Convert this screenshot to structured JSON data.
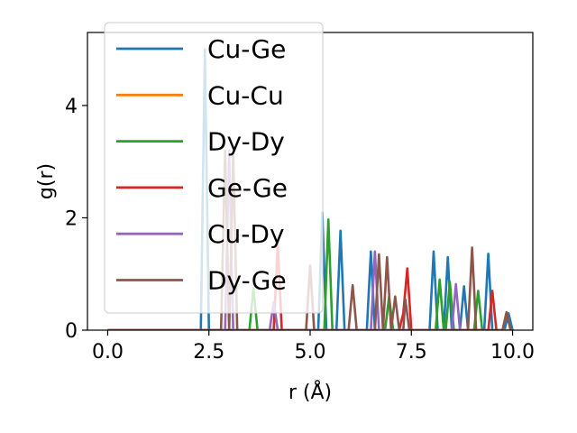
{
  "chart_data": {
    "type": "line",
    "xlabel": "r (Å)",
    "ylabel": "g(r)",
    "xlim": [
      -0.5,
      10.5
    ],
    "ylim": [
      0,
      5.3
    ],
    "xticks": [
      0.0,
      2.5,
      5.0,
      7.5,
      10.0
    ],
    "xtick_labels": [
      "0.0",
      "2.5",
      "5.0",
      "7.5",
      "10.0"
    ],
    "yticks": [
      0,
      2,
      4
    ],
    "ytick_labels": [
      "0",
      "2",
      "4"
    ],
    "grid": false,
    "legend_position": "top-left",
    "series": [
      {
        "name": "Cu-Ge",
        "color": "#1f77b4",
        "x": [
          0,
          2.3,
          2.4,
          2.5,
          5.2,
          5.3,
          5.4,
          5.65,
          5.75,
          5.85,
          6.4,
          6.5,
          6.6,
          7.95,
          8.05,
          8.15,
          8.3,
          8.4,
          8.5,
          8.7,
          8.8,
          8.9,
          9.3,
          9.4,
          9.5,
          9.8,
          9.9,
          10.0
        ],
        "y": [
          0,
          0,
          5.0,
          0,
          0,
          2.1,
          0,
          0,
          1.77,
          0,
          0,
          1.4,
          0,
          0,
          1.4,
          0,
          0,
          1.3,
          0,
          0,
          0.78,
          0,
          0,
          1.36,
          0,
          0,
          0.3,
          0
        ]
      },
      {
        "name": "Cu-Cu",
        "color": "#ff7f0e",
        "x": [
          0,
          10.0
        ],
        "y": [
          0,
          0
        ]
      },
      {
        "name": "Dy-Dy",
        "color": "#2ca02c",
        "x": [
          0,
          3.5,
          3.6,
          3.7,
          5.35,
          5.45,
          5.55,
          6.85,
          6.95,
          7.05,
          8.1,
          8.2,
          8.3,
          8.35,
          8.45,
          8.55,
          9.05,
          9.15,
          9.25
        ],
        "y": [
          0,
          0,
          0.75,
          0,
          0,
          1.97,
          0,
          0,
          0.6,
          0,
          0,
          0.9,
          0,
          0,
          0.86,
          0,
          0,
          0.7,
          0
        ]
      },
      {
        "name": "Ge-Ge",
        "color": "#d62728",
        "x": [
          0,
          4.1,
          4.2,
          4.3,
          7.2,
          7.3,
          7.4,
          7.5,
          9.4,
          9.5,
          9.6
        ],
        "y": [
          0,
          0,
          1.55,
          0,
          0,
          0.3,
          1.1,
          0,
          0,
          0.7,
          0
        ]
      },
      {
        "name": "Cu-Dy",
        "color": "#9467bd",
        "x": [
          0,
          2.9,
          3.0,
          3.1,
          4.0,
          4.1,
          4.2,
          6.5,
          6.6,
          6.7,
          8.5,
          8.6,
          8.7
        ],
        "y": [
          0,
          0,
          3.2,
          0,
          0,
          0.5,
          0,
          0,
          1.4,
          0,
          0,
          0.82,
          0
        ]
      },
      {
        "name": "Dy-Ge",
        "color": "#8c564b",
        "x": [
          0,
          2.8,
          2.9,
          3.0,
          3.1,
          3.2,
          4.9,
          5.0,
          5.1,
          5.95,
          6.05,
          6.15,
          6.6,
          6.7,
          6.8,
          6.9,
          7.0,
          7.1,
          7.2,
          7.3,
          7.35,
          7.45,
          8.9,
          9.0,
          9.1,
          9.75,
          9.85,
          9.95
        ],
        "y": [
          0,
          0,
          3.2,
          0,
          3.1,
          0,
          0,
          1.15,
          0,
          0,
          0.8,
          0,
          0,
          1.35,
          0,
          1.3,
          0,
          0.6,
          0,
          0,
          0.55,
          0,
          0,
          1.47,
          0,
          0,
          0.32,
          0
        ]
      }
    ]
  }
}
